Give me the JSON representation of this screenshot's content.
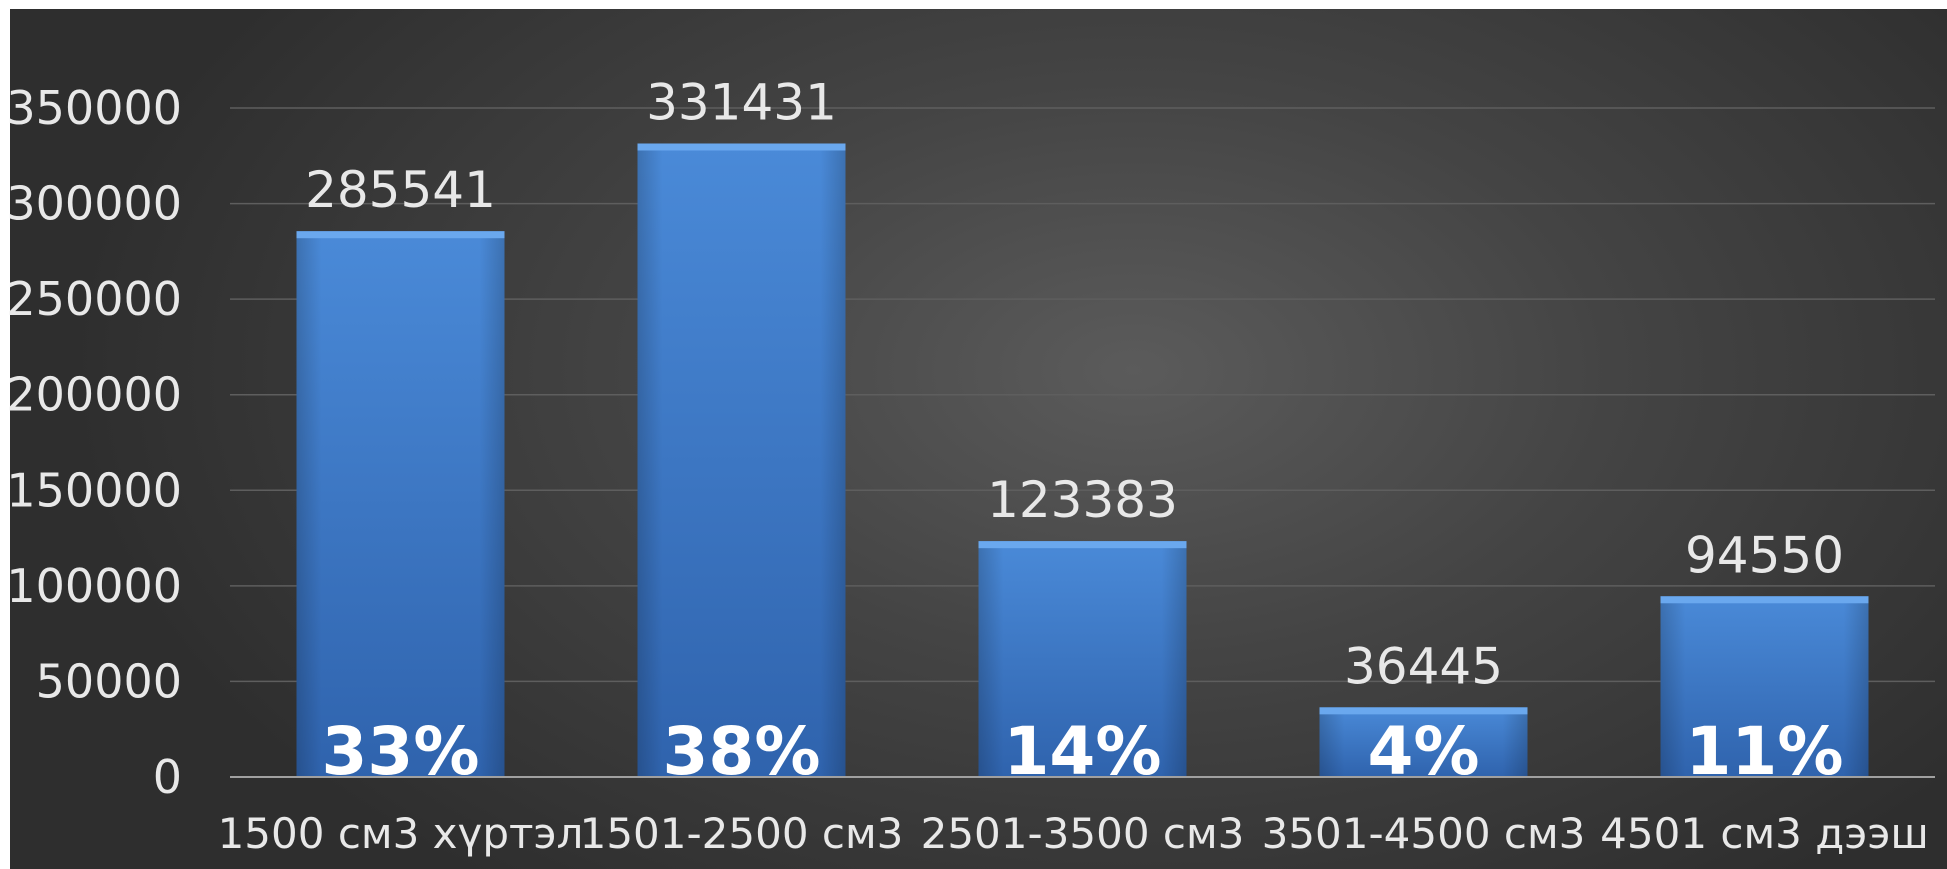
{
  "chart_data": {
    "type": "bar",
    "title": "",
    "xlabel": "",
    "ylabel": "",
    "categories": [
      "1500 см3 хүртэл",
      "1501-2500 см3",
      "2501-3500 см3",
      "3501-4500 см3",
      "4501 см3 дээш"
    ],
    "values": [
      285541,
      331431,
      123383,
      36445,
      94550
    ],
    "percent_labels": [
      "33%",
      "38%",
      "14%",
      "4%",
      "11%"
    ],
    "ylim": [
      0,
      350000
    ],
    "yticks": [
      0,
      50000,
      100000,
      150000,
      200000,
      250000,
      300000,
      350000
    ],
    "ytick_labels": [
      "0",
      "50000",
      "100000",
      "150000",
      "200000",
      "250000",
      "300000",
      "350000"
    ],
    "grid": true,
    "legend": "none",
    "colors": {
      "bar": "#3f7fd0",
      "bar_top": "#5a9be6",
      "bar_bottom": "#2f63ad",
      "text": "#e8e8e8",
      "grid": "#5e5e5e",
      "axis": "#a0a0a0"
    }
  }
}
